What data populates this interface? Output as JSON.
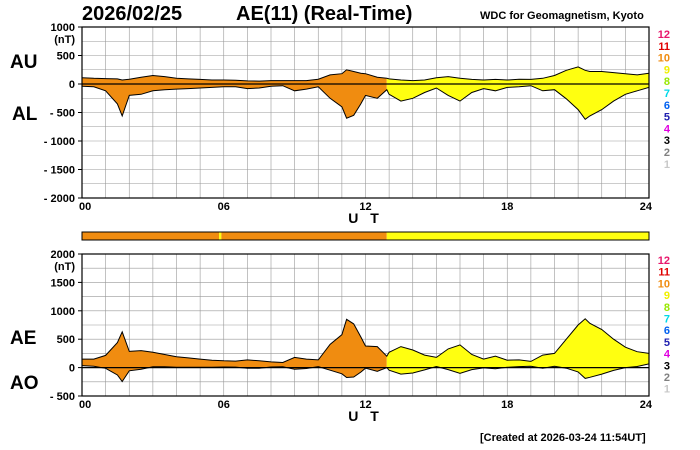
{
  "header": {
    "date": "2026/02/25",
    "title": "AE(11) (Real-Time)",
    "source": "WDC for Geomagnetism, Kyoto",
    "created": "[Created at 2026-03-24 11:54UT]"
  },
  "colors": {
    "quiet_orange": "#f08c10",
    "realtime_yellow": "#ffff10",
    "line": "#000000",
    "grid": "#999999"
  },
  "station_legend": [
    {
      "label": "12",
      "color": "#e8186c"
    },
    {
      "label": "11",
      "color": "#e00000"
    },
    {
      "label": "10",
      "color": "#f08c10"
    },
    {
      "label": "9",
      "color": "#f0f000"
    },
    {
      "label": "8",
      "color": "#98e800"
    },
    {
      "label": "7",
      "color": "#00d8e8"
    },
    {
      "label": "6",
      "color": "#0060f0"
    },
    {
      "label": "5",
      "color": "#2020b0"
    },
    {
      "label": "4",
      "color": "#e000e0"
    },
    {
      "label": "3",
      "color": "#000000"
    },
    {
      "label": "2",
      "color": "#808080"
    },
    {
      "label": "1",
      "color": "#c8c8c8"
    }
  ],
  "status_bar": [
    {
      "from": 0,
      "to": 5.8,
      "color": "#f08c10"
    },
    {
      "from": 5.8,
      "to": 5.9,
      "color": "#ffff10"
    },
    {
      "from": 5.9,
      "to": 12.9,
      "color": "#f08c10"
    },
    {
      "from": 12.9,
      "to": 24,
      "color": "#ffff10"
    }
  ],
  "color_change_hour": 12.9,
  "chart_data": [
    {
      "type": "area",
      "unit": "(nT)",
      "xlabel": "U T",
      "upper_label": "AU",
      "lower_label": "AL",
      "xlim": [
        0,
        24
      ],
      "ylim": [
        -2000,
        1000
      ],
      "y_ticks": [
        1000,
        500,
        0,
        -500,
        -1000,
        -1500,
        -2000
      ],
      "y_tick_labels": [
        "1000",
        "500",
        "0",
        "- 500",
        "- 1000",
        "- 1500",
        "- 2000"
      ],
      "x_ticks": [
        0,
        6,
        12,
        18,
        24
      ],
      "x_tick_labels": [
        "00",
        "06",
        "12",
        "18",
        "24"
      ],
      "hours": [
        0,
        0.5,
        1,
        1.5,
        1.7,
        2,
        2.5,
        3,
        3.5,
        4,
        4.5,
        5,
        5.5,
        6,
        6.5,
        7,
        7.5,
        8,
        8.5,
        9,
        9.5,
        10,
        10.5,
        11,
        11.2,
        11.5,
        11.8,
        12,
        12.5,
        12.9,
        13,
        13.5,
        14,
        14.5,
        15,
        15.5,
        16,
        16.5,
        17,
        17.5,
        18,
        18.5,
        19,
        19.5,
        20,
        20.5,
        21,
        21.3,
        21.5,
        22,
        22.5,
        23,
        23.5,
        24
      ],
      "series": [
        {
          "name": "AU",
          "values": [
            110,
            100,
            95,
            90,
            70,
            85,
            120,
            150,
            130,
            100,
            90,
            80,
            70,
            70,
            65,
            55,
            50,
            60,
            60,
            60,
            60,
            85,
            160,
            180,
            250,
            220,
            190,
            180,
            120,
            100,
            90,
            70,
            60,
            70,
            110,
            130,
            100,
            80,
            70,
            80,
            70,
            85,
            80,
            100,
            150,
            240,
            300,
            240,
            220,
            220,
            200,
            180,
            160,
            190
          ]
        },
        {
          "name": "AL",
          "values": [
            -40,
            -50,
            -120,
            -350,
            -560,
            -200,
            -180,
            -120,
            -100,
            -90,
            -80,
            -70,
            -60,
            -50,
            -50,
            -80,
            -70,
            -40,
            -30,
            -120,
            -90,
            -50,
            -250,
            -400,
            -600,
            -550,
            -350,
            -200,
            -250,
            -100,
            -180,
            -300,
            -250,
            -150,
            -70,
            -200,
            -300,
            -150,
            -80,
            -120,
            -60,
            -50,
            -30,
            -120,
            -100,
            -260,
            -450,
            -620,
            -560,
            -450,
            -300,
            -180,
            -120,
            -60
          ]
        }
      ]
    },
    {
      "type": "area",
      "unit": "(nT)",
      "xlabel": "U T",
      "upper_label": "AE",
      "lower_label": "AO",
      "xlim": [
        0,
        24
      ],
      "ylim": [
        -500,
        2000
      ],
      "y_ticks": [
        2000,
        1500,
        1000,
        500,
        0,
        -500
      ],
      "y_tick_labels": [
        "2000",
        "1500",
        "1000",
        "500",
        "0",
        "- 500"
      ],
      "x_ticks": [
        0,
        6,
        12,
        18,
        24
      ],
      "x_tick_labels": [
        "00",
        "06",
        "12",
        "18",
        "24"
      ],
      "hours": [
        0,
        0.5,
        1,
        1.5,
        1.7,
        2,
        2.5,
        3,
        3.5,
        4,
        4.5,
        5,
        5.5,
        6,
        6.5,
        7,
        7.5,
        8,
        8.5,
        9,
        9.5,
        10,
        10.5,
        11,
        11.2,
        11.5,
        11.8,
        12,
        12.5,
        12.9,
        13,
        13.5,
        14,
        14.5,
        15,
        15.5,
        16,
        16.5,
        17,
        17.5,
        18,
        18.5,
        19,
        19.5,
        20,
        20.5,
        21,
        21.3,
        21.5,
        22,
        22.5,
        23,
        23.5,
        24
      ],
      "series": [
        {
          "name": "AE",
          "values": [
            150,
            150,
            215,
            440,
            630,
            285,
            300,
            270,
            230,
            190,
            170,
            150,
            130,
            120,
            115,
            135,
            120,
            100,
            90,
            180,
            150,
            135,
            410,
            580,
            850,
            770,
            540,
            380,
            370,
            200,
            270,
            370,
            310,
            220,
            180,
            330,
            400,
            230,
            150,
            200,
            130,
            135,
            110,
            220,
            250,
            500,
            750,
            860,
            780,
            670,
            500,
            360,
            280,
            250
          ]
        },
        {
          "name": "AO",
          "values": [
            35,
            25,
            -12,
            -130,
            -245,
            -57,
            -30,
            15,
            15,
            5,
            5,
            5,
            5,
            10,
            8,
            -12,
            -10,
            10,
            15,
            -30,
            -15,
            18,
            -45,
            -110,
            -175,
            -165,
            -80,
            -10,
            -65,
            0,
            -45,
            -115,
            -95,
            -40,
            20,
            -35,
            -100,
            -35,
            -5,
            -20,
            5,
            18,
            25,
            -10,
            25,
            -10,
            -75,
            -190,
            -170,
            -115,
            -50,
            0,
            20,
            65
          ]
        }
      ]
    }
  ]
}
